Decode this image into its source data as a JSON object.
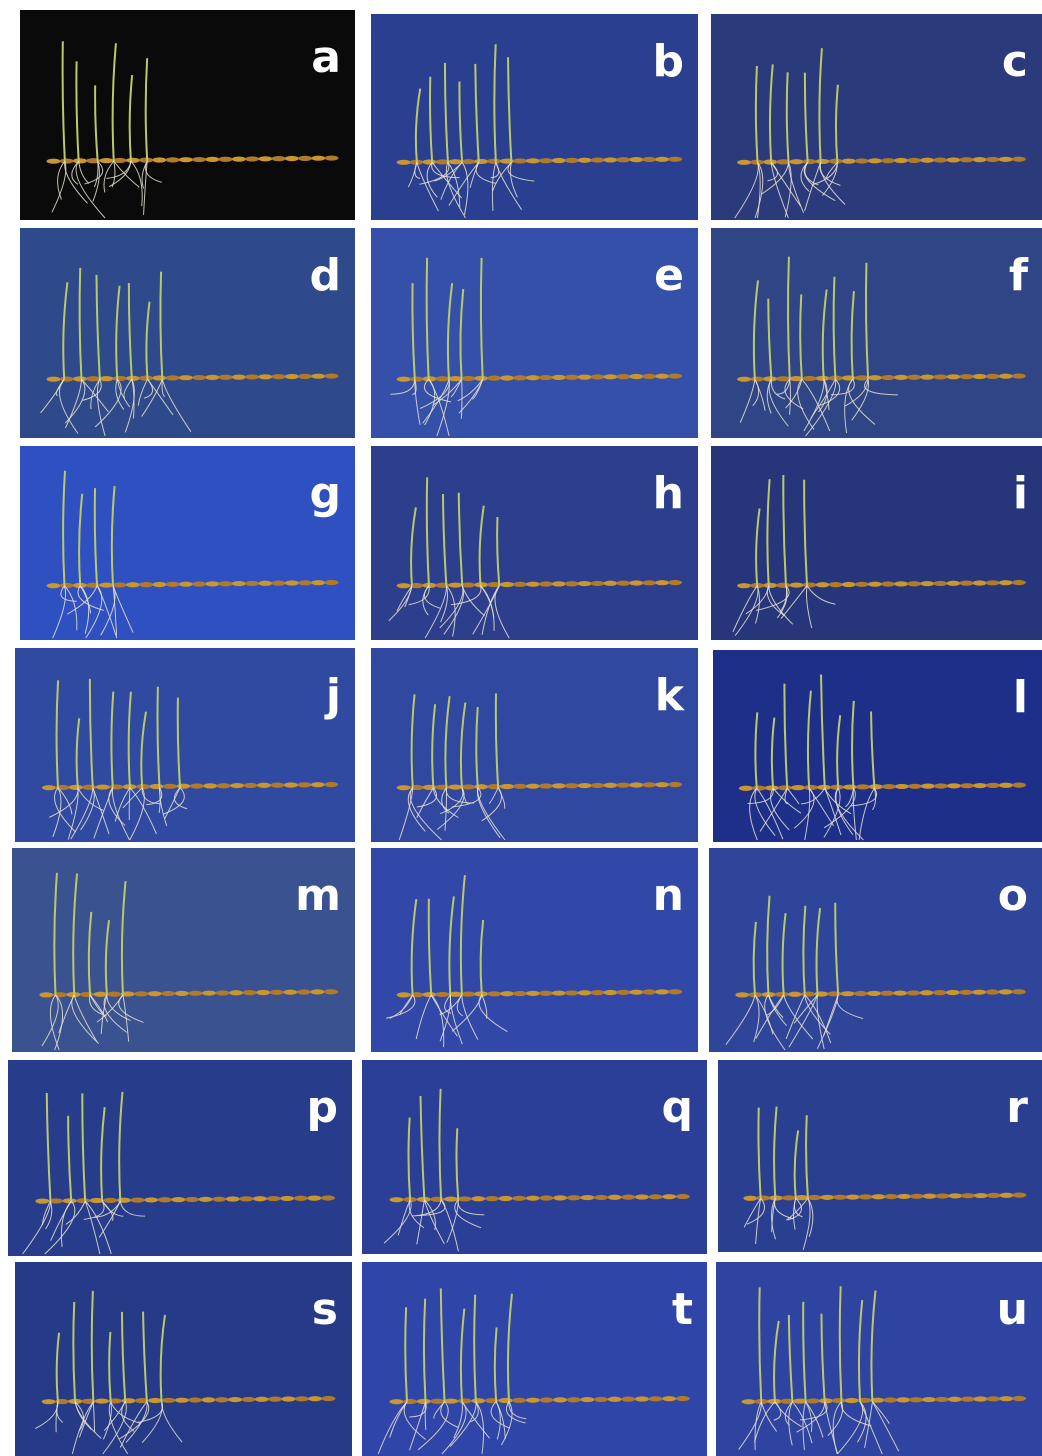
{
  "panels": [
    {
      "label": "a"
    },
    {
      "label": "b"
    },
    {
      "label": "c"
    },
    {
      "label": "d"
    },
    {
      "label": "e"
    },
    {
      "label": "f"
    },
    {
      "label": "g"
    },
    {
      "label": "h"
    },
    {
      "label": "i"
    },
    {
      "label": "j"
    },
    {
      "label": "k"
    },
    {
      "label": "l"
    },
    {
      "label": "m"
    },
    {
      "label": "n"
    },
    {
      "label": "o"
    },
    {
      "label": "p"
    },
    {
      "label": "q"
    },
    {
      "label": "r"
    },
    {
      "label": "s"
    },
    {
      "label": "t"
    },
    {
      "label": "u"
    }
  ]
}
